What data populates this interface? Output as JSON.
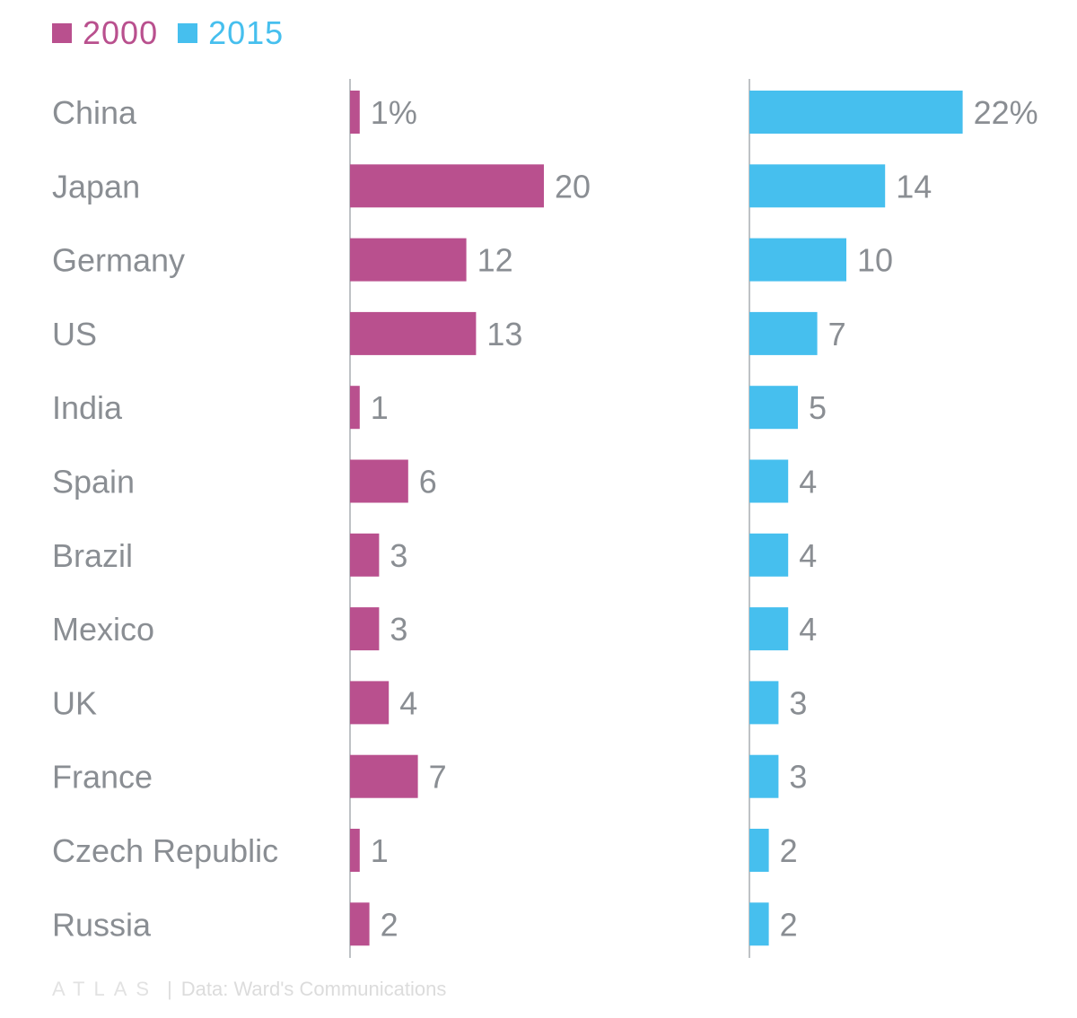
{
  "chart_data": {
    "type": "bar",
    "orientation": "horizontal",
    "layout": "two side-by-side panels sharing category labels",
    "unit": "%",
    "categories": [
      "China",
      "Japan",
      "Germany",
      "US",
      "India",
      "Spain",
      "Brazil",
      "Mexico",
      "UK",
      "France",
      "Czech Republic",
      "Russia"
    ],
    "series": [
      {
        "name": "2000",
        "color": "#b9508e",
        "values": [
          1,
          20,
          12,
          13,
          1,
          6,
          3,
          3,
          4,
          7,
          1,
          2
        ],
        "labels": [
          "1%",
          "20",
          "12",
          "13",
          "1",
          "6",
          "3",
          "3",
          "4",
          "7",
          "1",
          "2"
        ]
      },
      {
        "name": "2015",
        "color": "#46bfee",
        "values": [
          22,
          14,
          10,
          7,
          5,
          4,
          4,
          4,
          3,
          3,
          2,
          2
        ],
        "labels": [
          "22%",
          "14",
          "10",
          "7",
          "5",
          "4",
          "4",
          "4",
          "3",
          "3",
          "2",
          "2"
        ]
      }
    ],
    "legend": {
      "placement": "top-left",
      "entries": [
        "2000",
        "2015"
      ]
    },
    "xlim": [
      0,
      22
    ],
    "grid": false,
    "title": "",
    "xlabel": "",
    "ylabel": ""
  },
  "footer": {
    "brand": "ATLAS",
    "separator": "|",
    "source": "Data: Ward's Communications"
  }
}
